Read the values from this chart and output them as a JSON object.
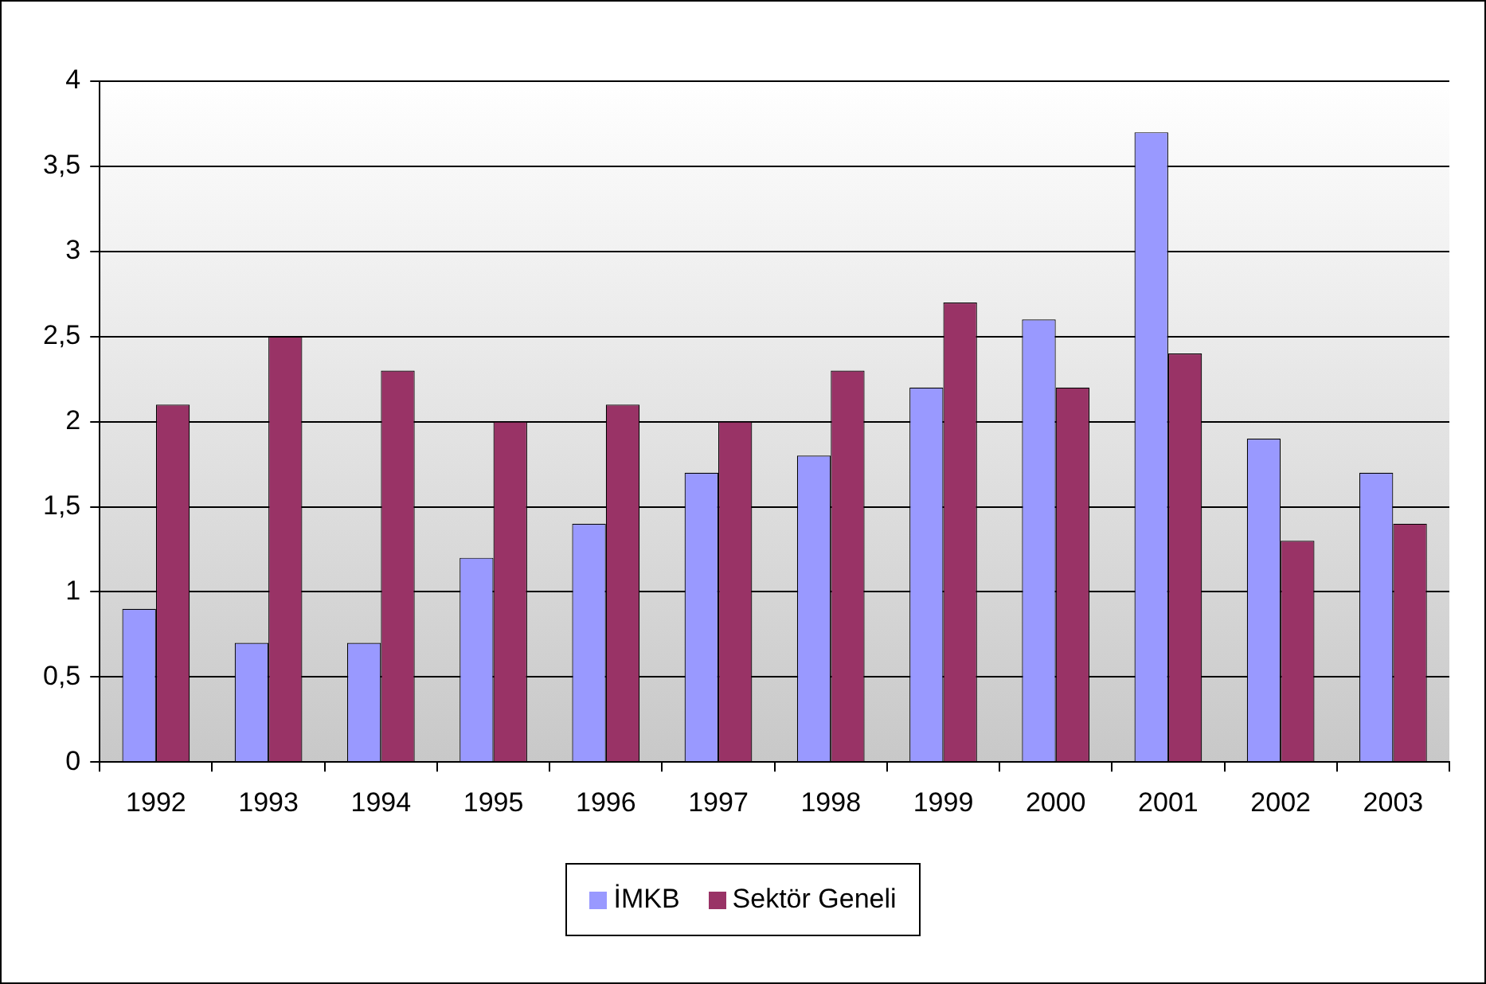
{
  "chart_data": {
    "type": "bar",
    "categories": [
      "1992",
      "1993",
      "1994",
      "1995",
      "1996",
      "1997",
      "1998",
      "1999",
      "2000",
      "2001",
      "2002",
      "2003"
    ],
    "series": [
      {
        "name": "İMKB",
        "color": "#9999ff",
        "values": [
          0.9,
          0.7,
          0.7,
          1.2,
          1.4,
          1.7,
          1.8,
          2.2,
          2.6,
          3.7,
          1.9,
          1.7
        ]
      },
      {
        "name": "Sektör Geneli",
        "color": "#993366",
        "values": [
          2.1,
          2.5,
          2.3,
          2.0,
          2.1,
          2.0,
          2.3,
          2.7,
          2.2,
          2.4,
          1.3,
          1.4
        ]
      }
    ],
    "ylim": [
      0,
      4
    ],
    "yticks": [
      0,
      {
        "value": 0.5,
        "label": "0,5"
      },
      1,
      {
        "value": 1.5,
        "label": "1,5"
      },
      2,
      {
        "value": 2.5,
        "label": "2,5"
      },
      3,
      {
        "value": 3.5,
        "label": "3,5"
      },
      4
    ],
    "grid": "y",
    "legend": "bottom"
  }
}
